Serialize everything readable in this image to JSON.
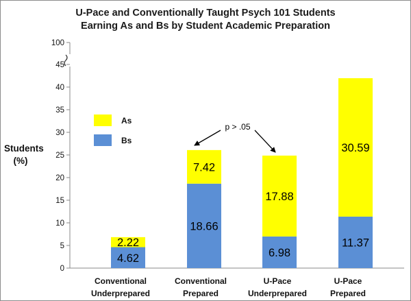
{
  "chart_data": {
    "type": "bar",
    "stacked": true,
    "title_line1": "U-Pace and Conventionally Taught Psych 101 Students",
    "title_line2": "Earning As and Bs by Student Academic Preparation",
    "ylabel_line1": "Students",
    "ylabel_line2": "(%)",
    "categories": [
      [
        "Conventional",
        "Underprepared"
      ],
      [
        "Conventional",
        "Prepared"
      ],
      [
        "U-Pace",
        "Underprepared"
      ],
      [
        "U-Pace",
        "Prepared"
      ]
    ],
    "series": [
      {
        "name": "Bs",
        "color": "#5b8fd5",
        "values": [
          4.62,
          18.66,
          6.98,
          11.37
        ]
      },
      {
        "name": "As",
        "color": "#ffff00",
        "values": [
          2.22,
          7.42,
          17.88,
          30.59
        ]
      }
    ],
    "yticks": [
      0,
      5,
      10,
      15,
      20,
      25,
      30,
      35,
      40,
      45
    ],
    "ylim": [
      0,
      45
    ],
    "axis_break_label": "100",
    "legend_position": "upper-left",
    "annotation": "p > .05",
    "grid": false
  }
}
